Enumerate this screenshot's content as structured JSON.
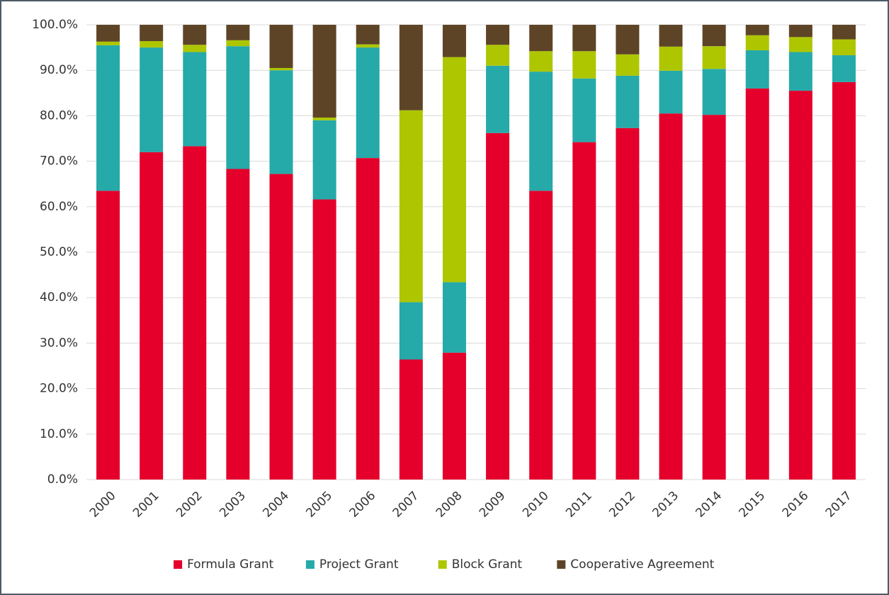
{
  "chart_data": {
    "type": "stacked_bar",
    "categories": [
      "2000",
      "2001",
      "2002",
      "2003",
      "2004",
      "2005",
      "2006",
      "2007",
      "2008",
      "2009",
      "2010",
      "2011",
      "2012",
      "2013",
      "2014",
      "2015",
      "2016",
      "2017"
    ],
    "series": [
      {
        "name": "Formula Grant",
        "color": "#e4002b",
        "values": [
          63.5,
          72.0,
          73.3,
          68.3,
          67.2,
          61.6,
          70.7,
          26.4,
          27.9,
          76.2,
          63.5,
          74.2,
          77.3,
          80.5,
          80.2,
          86.0,
          85.5,
          87.4
        ]
      },
      {
        "name": "Project Grant",
        "color": "#26a9a9",
        "values": [
          32.0,
          23.0,
          20.7,
          27.0,
          22.8,
          17.4,
          24.3,
          12.6,
          15.5,
          14.8,
          26.2,
          14.0,
          11.5,
          9.4,
          10.1,
          8.4,
          8.5,
          5.9
        ]
      },
      {
        "name": "Block Grant",
        "color": "#adc600",
        "values": [
          0.8,
          1.4,
          1.6,
          1.3,
          0.5,
          0.6,
          0.7,
          42.2,
          49.5,
          4.6,
          4.5,
          6.0,
          4.7,
          5.3,
          5.0,
          3.3,
          3.3,
          3.5
        ]
      },
      {
        "name": "Cooperative Agreement",
        "color": "#5e4426",
        "values": [
          3.7,
          3.6,
          4.4,
          3.4,
          9.5,
          20.4,
          4.3,
          18.8,
          7.1,
          4.4,
          5.8,
          5.8,
          6.5,
          4.8,
          4.7,
          2.3,
          2.7,
          3.2
        ]
      }
    ],
    "ylim": [
      0,
      100
    ],
    "yticks": [
      {
        "value": 0,
        "label": "0.0%"
      },
      {
        "value": 10,
        "label": "10.0%"
      },
      {
        "value": 20,
        "label": "20.0%"
      },
      {
        "value": 30,
        "label": "30.0%"
      },
      {
        "value": 40,
        "label": "40.0%"
      },
      {
        "value": 50,
        "label": "50.0%"
      },
      {
        "value": 60,
        "label": "60.0%"
      },
      {
        "value": 70,
        "label": "70.0%"
      },
      {
        "value": 80,
        "label": "80.0%"
      },
      {
        "value": 90,
        "label": "90.0%"
      },
      {
        "value": 100,
        "label": "100.0%"
      }
    ],
    "grid": true,
    "legend": "bottom"
  }
}
